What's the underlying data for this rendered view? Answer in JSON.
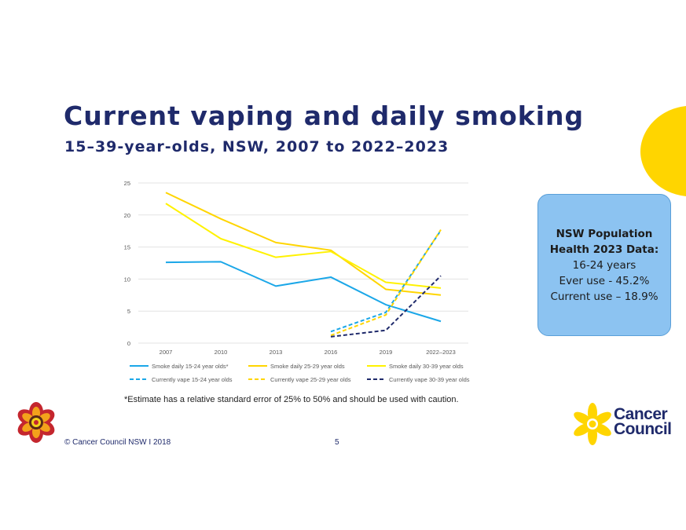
{
  "slide": {
    "title": "Current vaping and daily smoking",
    "subtitle": "15–39-year-olds, NSW, 2007 to 2022–2023",
    "footnote": "*Estimate has a relative standard error of 25% to 50% and should be used with caution.",
    "footer": "© Cancer Council NSW   I   2018",
    "page_number": "5",
    "brand_colors": {
      "navy": "#1f2a6b",
      "yellow": "#ffd500",
      "callout_bg": "#8cc3f1"
    }
  },
  "callout": {
    "heading_line1": "NSW Population",
    "heading_line2": "Health 2023 Data:",
    "line1": "16-24 years",
    "line2": "Ever use - 45.2%",
    "line3": "Current use – 18.9%"
  },
  "logo": {
    "cancer_council_line1": "Cancer",
    "cancer_council_line2": "Council"
  },
  "chart_data": {
    "type": "line",
    "categories": [
      "2007",
      "2010",
      "2013",
      "2016",
      "2019",
      "2022–2023"
    ],
    "ylim": [
      0,
      25
    ],
    "yticks": [
      0,
      5,
      10,
      15,
      20,
      25
    ],
    "grid": true,
    "legend_position": "bottom",
    "series": [
      {
        "name": "Smoke daily 15-24 year olds*",
        "color": "#1ba7e8",
        "dash": false,
        "values": [
          12.6,
          12.7,
          8.9,
          10.3,
          6.0,
          3.4
        ]
      },
      {
        "name": "Smoke daily 25-29 year olds",
        "color": "#ffd500",
        "dash": false,
        "values": [
          23.5,
          19.4,
          15.7,
          14.5,
          8.4,
          7.5
        ]
      },
      {
        "name": "Smoke daily 30-39 year olds",
        "color": "#fff200",
        "dash": false,
        "values": [
          21.8,
          16.3,
          13.4,
          14.3,
          9.5,
          8.6
        ]
      },
      {
        "name": "Currently vape 15-24 year olds",
        "color": "#1ba7e8",
        "dash": true,
        "values": [
          null,
          null,
          null,
          1.8,
          4.8,
          17.6
        ]
      },
      {
        "name": "Currently vape 25-29 year olds",
        "color": "#ffd500",
        "dash": true,
        "values": [
          null,
          null,
          null,
          1.2,
          4.4,
          17.7
        ]
      },
      {
        "name": "Currently vape 30-39 year olds",
        "color": "#1f2a6b",
        "dash": true,
        "values": [
          null,
          null,
          null,
          1.0,
          2.0,
          10.5
        ]
      }
    ]
  }
}
